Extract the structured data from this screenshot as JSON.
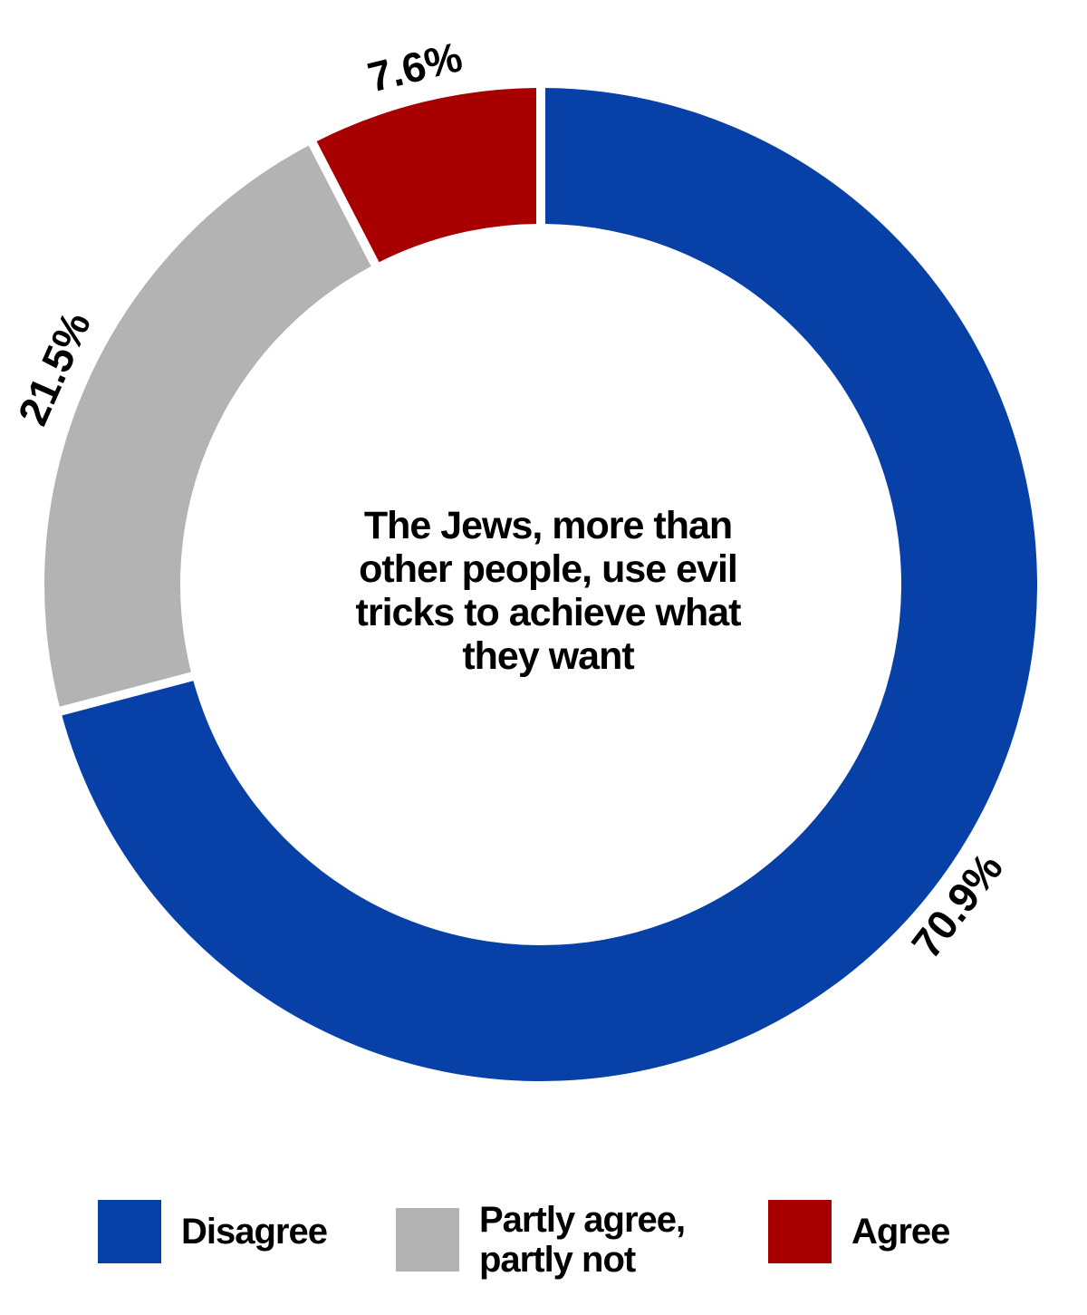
{
  "chart_data": {
    "type": "pie",
    "subtype": "donut",
    "center_text": "The Jews, more than other people, use evil tricks to achieve what they want",
    "slices": [
      {
        "name": "Disagree",
        "value": 70.9,
        "label": "70.9%",
        "color": "#0741a8"
      },
      {
        "name": "Partly agree, partly not",
        "value": 21.5,
        "label": "21.5%",
        "color": "#b3b3b3"
      },
      {
        "name": "Agree",
        "value": 7.6,
        "label": "7.6%",
        "color": "#a80000"
      }
    ],
    "legend": {
      "placement": "bottom",
      "entries": [
        {
          "label": "Disagree",
          "color": "#0741a8"
        },
        {
          "label": "Partly agree,\npartly not",
          "color": "#b3b3b3"
        },
        {
          "label": "Agree",
          "color": "#a80000"
        }
      ]
    }
  }
}
